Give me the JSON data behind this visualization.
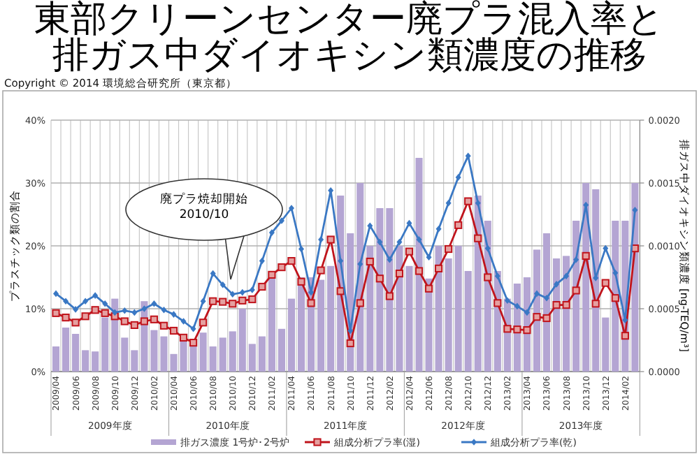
{
  "chart_data": {
    "type": "bar",
    "title": "東部クリーンセンター廃プラ混入率と排ガス中ダイオキシン類濃度の推移",
    "categories": [
      "2009/04",
      null,
      "2009/06",
      null,
      "2009/08",
      null,
      "2009/10",
      null,
      "2009/12",
      null,
      "2010/02",
      null,
      "2010/04",
      null,
      "2010/06",
      null,
      "2010/08",
      null,
      "2010/10",
      null,
      "2010/12",
      null,
      "2011/02",
      null,
      "2011/04",
      null,
      "2011/06",
      null,
      "2011/08",
      null,
      "2011/10",
      null,
      "2011/12",
      null,
      "2012/02",
      null,
      "2012/04",
      null,
      "2012/06",
      null,
      "2012/08",
      null,
      "2012/10",
      null,
      "2012/12",
      null,
      "2013/02",
      null,
      "2013/04",
      null,
      "2013/06",
      null,
      "2013/08",
      null,
      "2013/10",
      null,
      "2013/12",
      null,
      "2014/02",
      null
    ],
    "series": [
      {
        "name": "排ガス濃度 1号炉･2号炉",
        "axis": "y2",
        "color": "#b4a5d3",
        "values": [
          0.0002,
          0.00035,
          0.0003,
          0.00017,
          0.00016,
          0.00043,
          0.00058,
          0.00027,
          0.00017,
          0.00056,
          0.00033,
          0.00028,
          0.00014,
          0.00025,
          0.00023,
          0.00031,
          0.0002,
          0.00027,
          0.00032,
          0.0005,
          0.00022,
          0.00028,
          0.00074,
          0.00034,
          0.00058,
          0.00075,
          0.00075,
          0.00073,
          0.00084,
          0.0014,
          0.0011,
          0.0015,
          0.001,
          0.0013,
          0.0013,
          0.001,
          0.00084,
          0.0017,
          0.00074,
          0.001,
          0.0009,
          0.001,
          0.0008,
          0.0014,
          0.0012,
          0.0008,
          0.00058,
          0.0007,
          0.00075,
          0.00097,
          0.0011,
          0.0009,
          0.00092,
          0.0012,
          0.0015,
          0.00145,
          0.00043,
          0.0012,
          0.0012,
          0.0015
        ]
      },
      {
        "name": "組成分析プラ率(湿)",
        "type": "line",
        "marker": "square",
        "color": "#c0141c",
        "values": [
          9.3,
          8.6,
          7.8,
          8.8,
          9.8,
          9.3,
          8.8,
          8.0,
          7.4,
          8.0,
          8.3,
          7.3,
          6.5,
          5.4,
          4.6,
          7.8,
          11.2,
          11.1,
          10.8,
          11.3,
          11.5,
          13.5,
          15.4,
          16.6,
          17.6,
          14.3,
          10.9,
          16.1,
          21.0,
          12.8,
          4.5,
          10.9,
          17.5,
          14.8,
          12.0,
          15.6,
          19.1,
          16.0,
          13.2,
          16.4,
          19.5,
          23.3,
          27.1,
          21.2,
          15.0,
          10.9,
          6.8,
          6.7,
          6.6,
          8.7,
          8.5,
          10.6,
          10.6,
          12.9,
          18.4,
          10.8,
          14.1,
          11.7,
          5.7,
          19.6
        ]
      },
      {
        "name": "組成分析プラ率(乾)",
        "type": "line",
        "marker": "diamond",
        "color": "#3a78c4",
        "values": [
          12.4,
          11.2,
          9.9,
          11.2,
          12.1,
          10.8,
          9.4,
          9.7,
          9.4,
          10.0,
          10.8,
          9.8,
          9.1,
          8.0,
          6.8,
          11.2,
          15.6,
          13.8,
          12.3,
          12.6,
          13.0,
          17.6,
          22.1,
          24.0,
          26.0,
          19.5,
          12.6,
          21.0,
          28.8,
          17.6,
          6.5,
          17.1,
          23.2,
          20.6,
          17.8,
          20.6,
          23.6,
          21.0,
          18.2,
          22.7,
          26.8,
          30.9,
          34.3,
          26.8,
          19.6,
          15.2,
          11.3,
          10.4,
          9.4,
          12.4,
          11.7,
          13.9,
          15.2,
          17.8,
          26.5,
          14.9,
          19.6,
          15.7,
          8.2,
          25.7
        ]
      }
    ],
    "ylabel": "プラスチック類の割合",
    "y2label": "排ガス中ダイオキシン類濃度 [ng-TEQ/m³]",
    "ylim": [
      0,
      40
    ],
    "yticks": [
      {
        "value": 0,
        "label": "0%"
      },
      {
        "value": 10,
        "label": "10%"
      },
      {
        "value": 20,
        "label": "20%"
      },
      {
        "value": 30,
        "label": "30%"
      },
      {
        "value": 40,
        "label": "40%"
      }
    ],
    "y2lim": [
      0,
      0.002
    ],
    "y2ticks": [
      {
        "value": 0,
        "label": "0.0000"
      },
      {
        "value": 0.0005,
        "label": "0.0005"
      },
      {
        "value": 0.001,
        "label": "0.0010"
      },
      {
        "value": 0.0015,
        "label": "0.0015"
      },
      {
        "value": 0.002,
        "label": "0.0020"
      }
    ],
    "grid": true,
    "legend": "bottom",
    "annotations": [
      "廃プラ焼却開始\n2010/10",
      "2009年度",
      "2010年度",
      "2011年度",
      "2012年度",
      "2013年度",
      "Copyright ©  2014 環境総合研究所（東京都）"
    ]
  }
}
